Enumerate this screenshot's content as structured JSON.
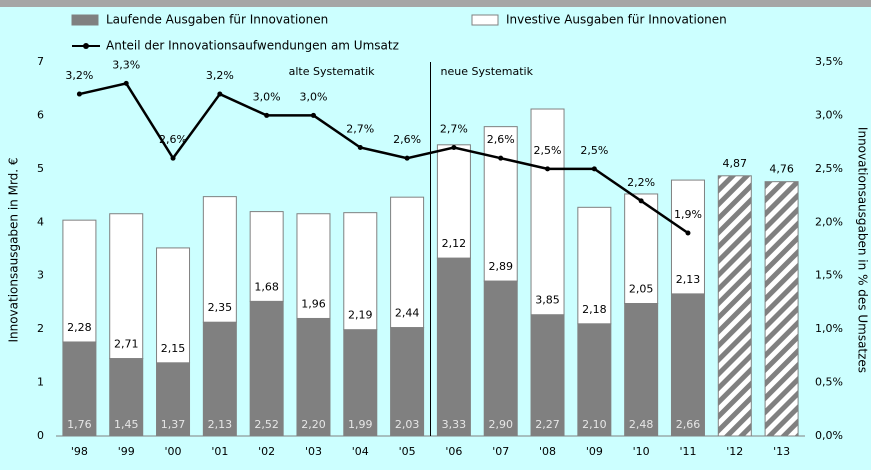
{
  "chart_data": {
    "type": "bar",
    "stacked": true,
    "categories": [
      "'98",
      "'99",
      "'00",
      "'01",
      "'02",
      "'03",
      "'04",
      "'05",
      "'06",
      "'07",
      "'08",
      "'09",
      "'10",
      "'11",
      "'12",
      "'13"
    ],
    "series": [
      {
        "name": "Laufende Ausgaben für Innovationen",
        "color": "#808080",
        "values": [
          1.76,
          1.45,
          1.37,
          2.13,
          2.52,
          2.2,
          1.99,
          2.03,
          3.33,
          2.9,
          2.27,
          2.1,
          2.48,
          2.66,
          null,
          null
        ],
        "value_labels": [
          "1,76",
          "1,45",
          "1,37",
          "2,13",
          "2,52",
          "2,20",
          "1,99",
          "2,03",
          "3,33",
          "2,90",
          "2,27",
          "2,10",
          "2,48",
          "2,66",
          null,
          null
        ]
      },
      {
        "name": "Investive Ausgaben für Innovationen",
        "color": "#ffffff",
        "values": [
          2.28,
          2.71,
          2.15,
          2.35,
          1.68,
          1.96,
          2.19,
          2.44,
          2.12,
          2.89,
          3.85,
          2.18,
          2.05,
          2.13,
          null,
          null
        ],
        "value_labels": [
          "2,28",
          "2,71",
          "2,15",
          "2,35",
          "1,68",
          "1,96",
          "2,19",
          "2,44",
          "2,12",
          "2,89",
          "3,85",
          "2,18",
          "2,05",
          "2,13",
          null,
          null
        ]
      },
      {
        "pattern": "hatch",
        "color": "#808080",
        "values": [
          null,
          null,
          null,
          null,
          null,
          null,
          null,
          null,
          null,
          null,
          null,
          null,
          null,
          null,
          4.87,
          4.76
        ],
        "value_labels": [
          null,
          null,
          null,
          null,
          null,
          null,
          null,
          null,
          null,
          null,
          null,
          null,
          null,
          null,
          "4,87",
          "4,76"
        ]
      },
      {
        "name": "Anteil der Innovationsaufwendungen am Umsatz",
        "type": "line",
        "axis": "y2",
        "color": "#000000",
        "values": [
          3.2,
          3.3,
          2.6,
          3.2,
          3.0,
          3.0,
          2.7,
          2.6,
          2.7,
          2.6,
          2.5,
          2.5,
          2.2,
          1.9,
          null,
          null
        ],
        "value_labels": [
          "3,2%",
          "3,3%",
          "2,6%",
          "3,2%",
          "3,0%",
          "3,0%",
          "2,7%",
          "2,6%",
          "2,7%",
          "2,6%",
          "2,5%",
          "2,5%",
          "2,2%",
          "1,9%",
          null,
          null
        ]
      }
    ],
    "ylabel": "Innovationsausgaben in Mrd. €",
    "y2label": "Innovationsausgaben in % des Umsatzes",
    "ylim": [
      0,
      7
    ],
    "yticks": [
      0,
      1,
      2,
      3,
      4,
      5,
      6,
      7
    ],
    "y2lim": [
      0,
      3.5
    ],
    "y2ticks": [
      {
        "value": 0,
        "label": "0,0%"
      },
      {
        "value": 0.5,
        "label": "0,5%"
      },
      {
        "value": 1.0,
        "label": "1,0%"
      },
      {
        "value": 1.5,
        "label": "1,5%"
      },
      {
        "value": 2.0,
        "label": "2,0%"
      },
      {
        "value": 2.5,
        "label": "2,5%"
      },
      {
        "value": 3.0,
        "label": "3,0%"
      },
      {
        "value": 3.5,
        "label": "3,5%"
      }
    ],
    "annotations": [
      "alte Systematik",
      "neue Systematik"
    ]
  }
}
